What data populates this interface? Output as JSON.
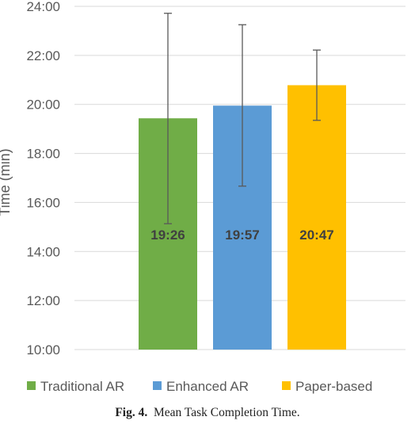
{
  "caption": {
    "label": "Fig. 4.",
    "text": "Mean Task Completion Time."
  },
  "chart_data": {
    "type": "bar",
    "ylabel": "Time (min)",
    "xlabel": "",
    "ylim_minutes": [
      600,
      1440
    ],
    "ytick_labels": [
      "10:00",
      "12:00",
      "14:00",
      "16:00",
      "18:00",
      "20:00",
      "22:00",
      "24:00"
    ],
    "ytick_values_minutes": [
      600,
      720,
      840,
      960,
      1080,
      1200,
      1320,
      1440
    ],
    "grid": true,
    "legend": "bottom",
    "categories": [
      "Traditional AR",
      "Enhanced AR",
      "Paper-based"
    ],
    "value_labels": [
      "19:26",
      "19:57",
      "20:47"
    ],
    "values_minutes": [
      1166,
      1197,
      1247
    ],
    "error_low_minutes": [
      908,
      1000,
      1161
    ],
    "error_high_minutes": [
      1423,
      1395,
      1333
    ],
    "colors": [
      "#70AD47",
      "#5B9BD5",
      "#FFC000"
    ]
  }
}
